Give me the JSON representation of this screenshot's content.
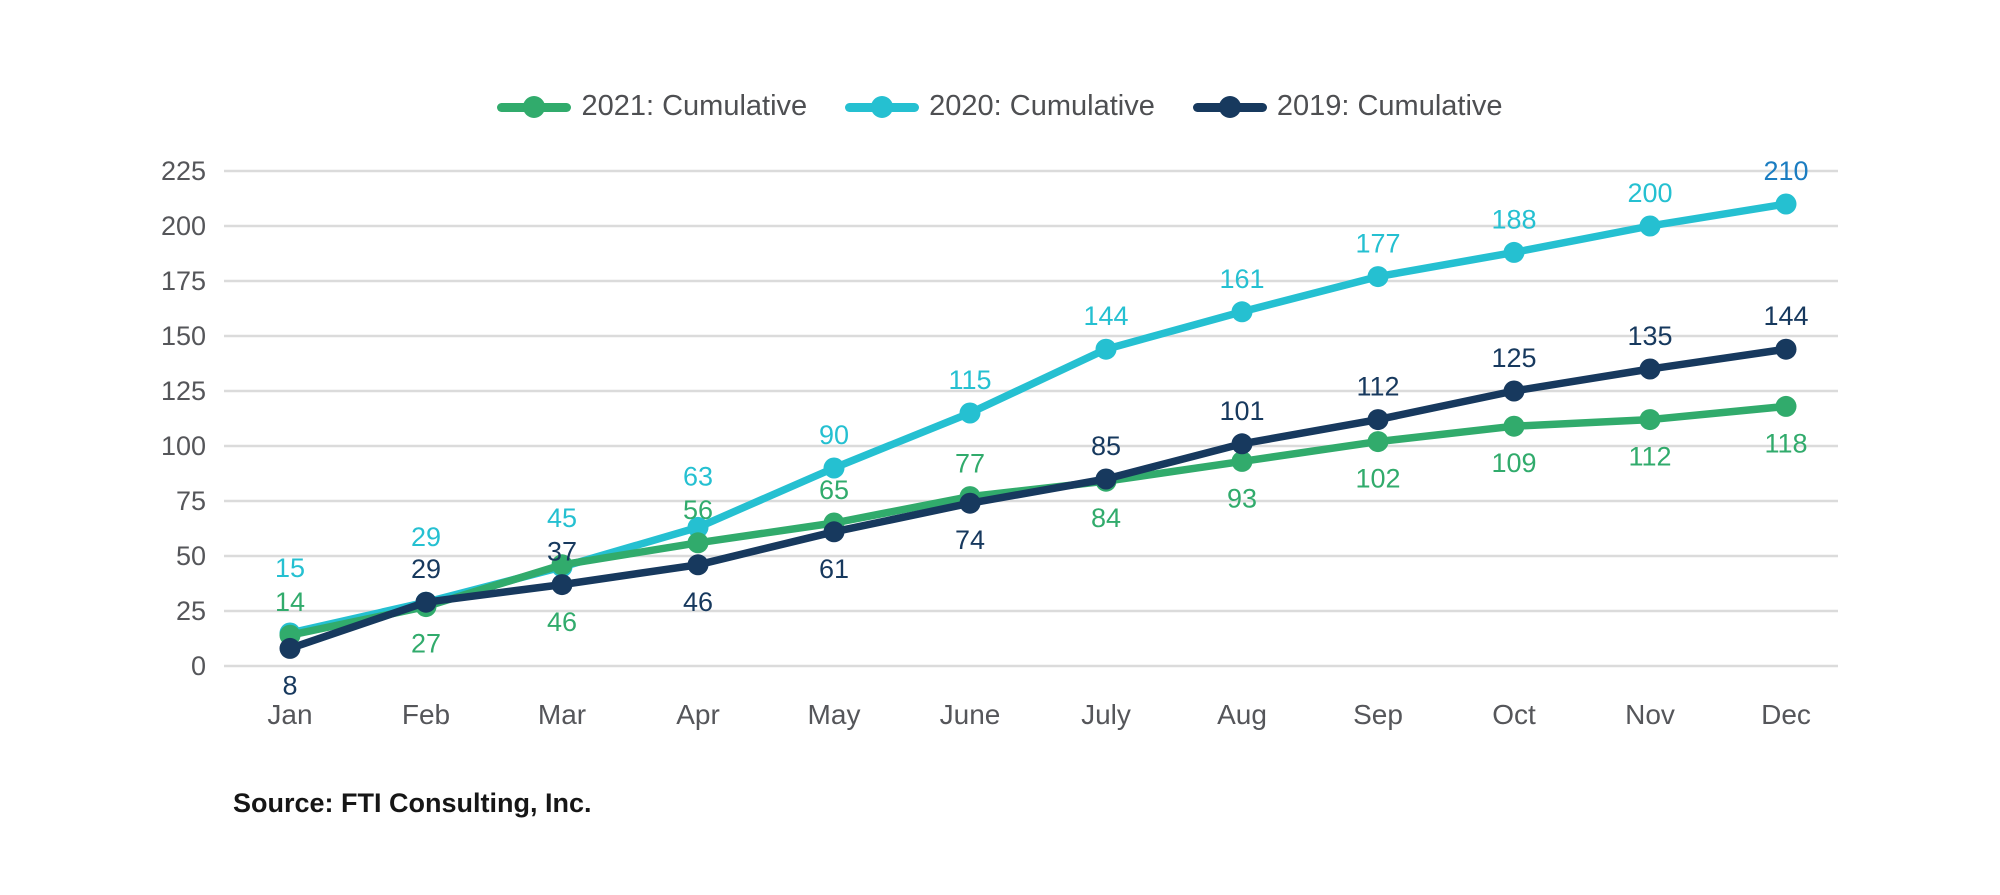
{
  "chart_data": {
    "type": "line",
    "title": "",
    "xlabel": "",
    "ylabel": "",
    "categories": [
      "Jan",
      "Feb",
      "Mar",
      "Apr",
      "May",
      "June",
      "July",
      "Aug",
      "Sep",
      "Oct",
      "Nov",
      "Dec"
    ],
    "ylim": [
      0,
      225
    ],
    "ytick_step": 25,
    "ytick_labels": [
      "0",
      "25",
      "50",
      "75",
      "100",
      "125",
      "150",
      "175",
      "200",
      "225"
    ],
    "grid": "horizontal-only",
    "legend_position": "top-center",
    "series": [
      {
        "name": "2021: Cumulative",
        "color": "#31AB6C",
        "values": [
          14,
          27,
          46,
          56,
          65,
          77,
          84,
          93,
          102,
          109,
          112,
          118
        ],
        "label_dy": [
          -24,
          46,
          66,
          -24,
          -24,
          -24,
          46,
          46,
          46,
          46,
          46,
          46
        ]
      },
      {
        "name": "2020: Cumulative",
        "color": "#25C0D1",
        "values": [
          15,
          29,
          45,
          63,
          90,
          115,
          144,
          161,
          177,
          188,
          200,
          210
        ],
        "label_dy": [
          -56,
          -56,
          -40,
          -42,
          -24,
          -24,
          -24,
          -24,
          -24,
          -24,
          -24,
          -24
        ],
        "label_color_overrides": {
          "11": "#1B7DC1"
        }
      },
      {
        "name": "2019: Cumulative",
        "color": "#17395E",
        "values": [
          8,
          29,
          37,
          46,
          61,
          74,
          85,
          101,
          112,
          125,
          135,
          144
        ],
        "label_dy": [
          46,
          -24,
          -24,
          46,
          46,
          46,
          -24,
          -24,
          -24,
          -24,
          -24,
          -24
        ]
      }
    ],
    "draw_order": [
      1,
      0,
      2
    ]
  },
  "source_note": "Source: FTI Consulting, Inc.",
  "colors": {
    "axis_text": "#55565A",
    "gridline": "#DBDBDB",
    "legend_text": "#4E4F52",
    "dec_2020_label": "#1B7DC1",
    "background": "#FFFFFF"
  }
}
